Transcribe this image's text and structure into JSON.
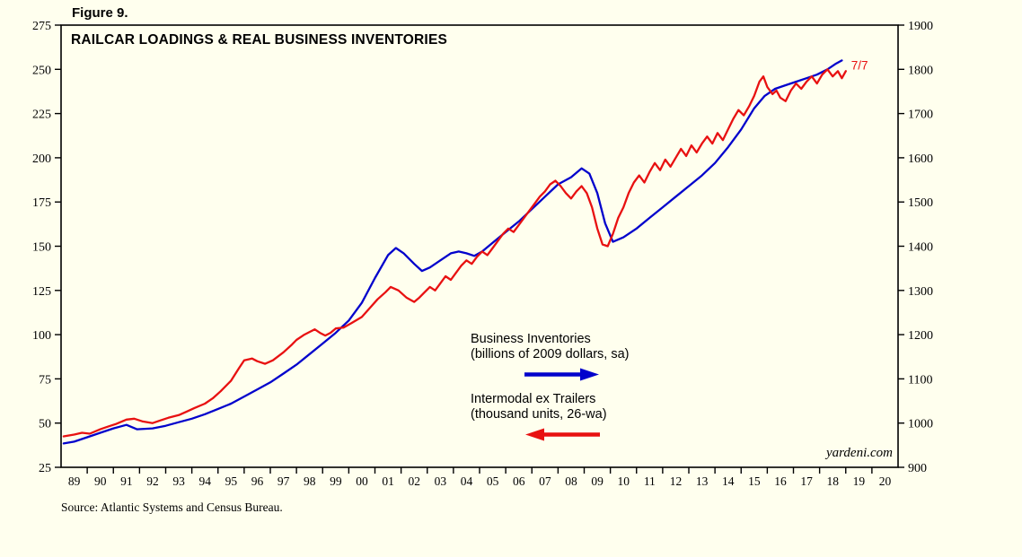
{
  "figure_label": "Figure 9.",
  "watermark": "yardeni.com",
  "source_note": "Source: Atlantic Systems and Census Bureau.",
  "colors": {
    "background": "#FFFFEE",
    "axis": "#000000",
    "blue_series": "#0202CC",
    "red_series": "#E81111"
  },
  "chart_data": {
    "type": "line",
    "title": "RAILCAR LOADINGS & REAL BUSINESS INVENTORIES",
    "grid": false,
    "legend_position": "center-right, stacked text with directional arrows",
    "x_axis": {
      "min": 1988.5,
      "max": 2020.5,
      "labels": [
        "89",
        "90",
        "91",
        "92",
        "93",
        "94",
        "95",
        "96",
        "97",
        "98",
        "99",
        "00",
        "01",
        "02",
        "03",
        "04",
        "05",
        "06",
        "07",
        "08",
        "09",
        "10",
        "11",
        "12",
        "13",
        "14",
        "15",
        "16",
        "17",
        "18",
        "19",
        "20"
      ]
    },
    "y_left": {
      "min": 25,
      "max": 275,
      "step": 25,
      "ticks": [
        275,
        250,
        225,
        200,
        175,
        150,
        125,
        100,
        75,
        50,
        25
      ],
      "applies_to": "Intermodal ex Trailers"
    },
    "y_right": {
      "min": 900,
      "max": 1900,
      "step": 100,
      "ticks": [
        1900,
        1800,
        1700,
        1600,
        1500,
        1400,
        1300,
        1200,
        1100,
        1000,
        900
      ],
      "applies_to": "Business Inventories"
    },
    "series": [
      {
        "name": "Business Inventories",
        "units": "(billions of 2009 dollars, sa)",
        "axis": "right",
        "color": "#0202CC",
        "arrow_direction": "right",
        "points": [
          [
            1988.6,
            954
          ],
          [
            1989,
            958
          ],
          [
            1989.5,
            968
          ],
          [
            1990,
            978
          ],
          [
            1990.5,
            988
          ],
          [
            1991,
            996
          ],
          [
            1991.4,
            986
          ],
          [
            1992,
            988
          ],
          [
            1992.5,
            994
          ],
          [
            1993,
            1002
          ],
          [
            1993.5,
            1010
          ],
          [
            1994,
            1020
          ],
          [
            1994.5,
            1032
          ],
          [
            1995,
            1044
          ],
          [
            1995.5,
            1060
          ],
          [
            1996,
            1076
          ],
          [
            1996.5,
            1092
          ],
          [
            1997,
            1112
          ],
          [
            1997.5,
            1132
          ],
          [
            1998,
            1156
          ],
          [
            1998.5,
            1180
          ],
          [
            1999,
            1204
          ],
          [
            1999.5,
            1232
          ],
          [
            2000,
            1272
          ],
          [
            2000.5,
            1328
          ],
          [
            2001,
            1380
          ],
          [
            2001.3,
            1396
          ],
          [
            2001.6,
            1384
          ],
          [
            2002,
            1360
          ],
          [
            2002.3,
            1344
          ],
          [
            2002.6,
            1352
          ],
          [
            2003,
            1368
          ],
          [
            2003.4,
            1384
          ],
          [
            2003.7,
            1388
          ],
          [
            2004,
            1384
          ],
          [
            2004.3,
            1378
          ],
          [
            2004.6,
            1388
          ],
          [
            2005,
            1408
          ],
          [
            2005.5,
            1432
          ],
          [
            2006,
            1456
          ],
          [
            2006.5,
            1484
          ],
          [
            2007,
            1512
          ],
          [
            2007.5,
            1540
          ],
          [
            2008,
            1556
          ],
          [
            2008.4,
            1576
          ],
          [
            2008.7,
            1564
          ],
          [
            2009,
            1520
          ],
          [
            2009.3,
            1452
          ],
          [
            2009.6,
            1410
          ],
          [
            2010,
            1420
          ],
          [
            2010.5,
            1440
          ],
          [
            2011,
            1464
          ],
          [
            2011.5,
            1488
          ],
          [
            2012,
            1512
          ],
          [
            2012.5,
            1536
          ],
          [
            2013,
            1560
          ],
          [
            2013.5,
            1588
          ],
          [
            2014,
            1624
          ],
          [
            2014.5,
            1664
          ],
          [
            2015,
            1712
          ],
          [
            2015.4,
            1740
          ],
          [
            2015.8,
            1756
          ],
          [
            2016.2,
            1764
          ],
          [
            2016.6,
            1772
          ],
          [
            2017,
            1780
          ],
          [
            2017.4,
            1788
          ],
          [
            2017.8,
            1800
          ],
          [
            2018.1,
            1812
          ],
          [
            2018.35,
            1820
          ]
        ]
      },
      {
        "name": "Intermodal ex Trailers",
        "units": "(thousand units, 26-wa)",
        "axis": "left",
        "color": "#E81111",
        "arrow_direction": "left",
        "end_label": "7/7",
        "points": [
          [
            1988.6,
            42.5
          ],
          [
            1989,
            43.5
          ],
          [
            1989.3,
            44.5
          ],
          [
            1989.6,
            44
          ],
          [
            1990,
            46.5
          ],
          [
            1990.3,
            48
          ],
          [
            1990.6,
            49.5
          ],
          [
            1991,
            52
          ],
          [
            1991.3,
            52.5
          ],
          [
            1991.6,
            51
          ],
          [
            1992,
            50
          ],
          [
            1992.3,
            51.5
          ],
          [
            1992.6,
            53
          ],
          [
            1993,
            54.5
          ],
          [
            1993.3,
            56.5
          ],
          [
            1993.6,
            58.5
          ],
          [
            1994,
            61
          ],
          [
            1994.3,
            64
          ],
          [
            1994.6,
            68
          ],
          [
            1995,
            74
          ],
          [
            1995.3,
            81
          ],
          [
            1995.5,
            85.5
          ],
          [
            1995.8,
            86.5
          ],
          [
            1996,
            85
          ],
          [
            1996.3,
            83.5
          ],
          [
            1996.6,
            85.5
          ],
          [
            1997,
            90
          ],
          [
            1997.3,
            94
          ],
          [
            1997.5,
            97
          ],
          [
            1997.8,
            100
          ],
          [
            1998,
            101.5
          ],
          [
            1998.2,
            103
          ],
          [
            1998.4,
            101
          ],
          [
            1998.6,
            99.5
          ],
          [
            1998.8,
            101
          ],
          [
            1999,
            103.5
          ],
          [
            1999.3,
            104
          ],
          [
            1999.6,
            106.5
          ],
          [
            2000,
            110
          ],
          [
            2000.3,
            115
          ],
          [
            2000.6,
            120
          ],
          [
            2000.9,
            124
          ],
          [
            2001.1,
            127
          ],
          [
            2001.4,
            125
          ],
          [
            2001.7,
            121
          ],
          [
            2002,
            118.5
          ],
          [
            2002.2,
            121
          ],
          [
            2002.4,
            124
          ],
          [
            2002.6,
            127
          ],
          [
            2002.8,
            125
          ],
          [
            2003,
            129
          ],
          [
            2003.2,
            133
          ],
          [
            2003.4,
            131
          ],
          [
            2003.6,
            135
          ],
          [
            2003.8,
            139
          ],
          [
            2004,
            142
          ],
          [
            2004.2,
            140
          ],
          [
            2004.4,
            144
          ],
          [
            2004.6,
            147
          ],
          [
            2004.8,
            145
          ],
          [
            2005,
            149
          ],
          [
            2005.2,
            153
          ],
          [
            2005.4,
            157
          ],
          [
            2005.6,
            160
          ],
          [
            2005.8,
            158
          ],
          [
            2006,
            162
          ],
          [
            2006.2,
            166
          ],
          [
            2006.4,
            170
          ],
          [
            2006.6,
            174
          ],
          [
            2006.8,
            178
          ],
          [
            2007,
            181
          ],
          [
            2007.2,
            185
          ],
          [
            2007.4,
            187
          ],
          [
            2007.6,
            184
          ],
          [
            2007.8,
            180
          ],
          [
            2008,
            177
          ],
          [
            2008.2,
            181
          ],
          [
            2008.4,
            184
          ],
          [
            2008.6,
            180
          ],
          [
            2008.8,
            172
          ],
          [
            2009,
            160
          ],
          [
            2009.2,
            151
          ],
          [
            2009.4,
            150
          ],
          [
            2009.6,
            157
          ],
          [
            2009.8,
            166
          ],
          [
            2010,
            172
          ],
          [
            2010.2,
            180
          ],
          [
            2010.4,
            186
          ],
          [
            2010.6,
            190
          ],
          [
            2010.8,
            186
          ],
          [
            2011,
            192
          ],
          [
            2011.2,
            197
          ],
          [
            2011.4,
            193
          ],
          [
            2011.6,
            199
          ],
          [
            2011.8,
            195
          ],
          [
            2012,
            200
          ],
          [
            2012.2,
            205
          ],
          [
            2012.4,
            201
          ],
          [
            2012.6,
            207
          ],
          [
            2012.8,
            203
          ],
          [
            2013,
            208
          ],
          [
            2013.2,
            212
          ],
          [
            2013.4,
            208
          ],
          [
            2013.6,
            214
          ],
          [
            2013.8,
            210
          ],
          [
            2014,
            216
          ],
          [
            2014.2,
            222
          ],
          [
            2014.4,
            227
          ],
          [
            2014.6,
            224
          ],
          [
            2014.8,
            229
          ],
          [
            2015,
            235
          ],
          [
            2015.2,
            243
          ],
          [
            2015.35,
            246
          ],
          [
            2015.5,
            240
          ],
          [
            2015.7,
            236
          ],
          [
            2015.85,
            238
          ],
          [
            2016,
            234
          ],
          [
            2016.2,
            232
          ],
          [
            2016.4,
            238
          ],
          [
            2016.6,
            242
          ],
          [
            2016.8,
            239
          ],
          [
            2017,
            243
          ],
          [
            2017.2,
            246
          ],
          [
            2017.4,
            242
          ],
          [
            2017.6,
            247
          ],
          [
            2017.8,
            250
          ],
          [
            2018,
            246
          ],
          [
            2018.2,
            249
          ],
          [
            2018.35,
            245
          ],
          [
            2018.5,
            249
          ]
        ]
      }
    ]
  }
}
